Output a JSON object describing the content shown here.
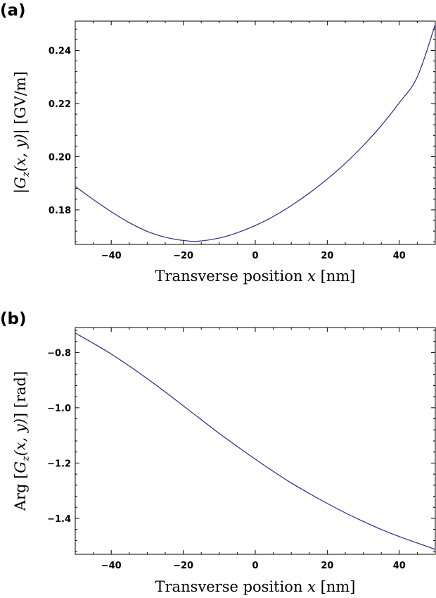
{
  "chart_data": [
    {
      "type": "line",
      "panel_label": "(a)",
      "xlabel_text": "Transverse position ",
      "xlabel_var": "x",
      "xlabel_unit": " [nm]",
      "ylabel_pre": "|",
      "ylabel_sym": "G",
      "ylabel_sub": "z",
      "ylabel_args": "(x, y)",
      "ylabel_post": "| [GV/m]",
      "xlim": [
        -50,
        50
      ],
      "ylim": [
        0.167,
        0.251
      ],
      "xticks": [
        -40,
        -20,
        0,
        20,
        40
      ],
      "yticks": [
        0.18,
        0.2,
        0.22,
        0.24
      ],
      "xtick_labels": [
        "−40",
        "−20",
        "0",
        "20",
        "40"
      ],
      "ytick_labels": [
        "0.18",
        "0.20",
        "0.22",
        "0.24"
      ],
      "color": "#2b2b8c",
      "series": [
        {
          "x": [
            -50,
            -45,
            -40,
            -35,
            -30,
            -25,
            -20,
            -16,
            -10,
            -5,
            0,
            5,
            10,
            15,
            20,
            25,
            30,
            35,
            40,
            45,
            50
          ],
          "values": [
            0.1888,
            0.1839,
            0.1793,
            0.1752,
            0.1719,
            0.1697,
            0.1685,
            0.1682,
            0.1694,
            0.1714,
            0.1741,
            0.1775,
            0.1816,
            0.1863,
            0.1916,
            0.1975,
            0.2042,
            0.2117,
            0.2203,
            0.23,
            0.2498
          ]
        }
      ]
    },
    {
      "type": "line",
      "panel_label": "(b)",
      "xlabel_text": "Transverse position ",
      "xlabel_var": "x",
      "xlabel_unit": " [nm]",
      "ylabel_pre": "Arg [",
      "ylabel_sym": "G",
      "ylabel_sub": "z",
      "ylabel_args": "(x, y)",
      "ylabel_post": "] [rad]",
      "xlim": [
        -50,
        50
      ],
      "ylim": [
        -1.53,
        -0.71
      ],
      "xticks": [
        -40,
        -20,
        0,
        20,
        40
      ],
      "yticks": [
        -1.4,
        -1.2,
        -1.0,
        -0.8
      ],
      "xtick_labels": [
        "−40",
        "−20",
        "0",
        "20",
        "40"
      ],
      "ytick_labels": [
        "−1.4",
        "−1.2",
        "−1.0",
        "−0.8"
      ],
      "color": "#2b2b8c",
      "series": [
        {
          "x": [
            -50,
            -45,
            -40,
            -35,
            -30,
            -25,
            -20,
            -15,
            -10,
            -5,
            0,
            5,
            10,
            15,
            20,
            25,
            30,
            35,
            40,
            45,
            50
          ],
          "values": [
            -0.73,
            -0.767,
            -0.806,
            -0.849,
            -0.895,
            -0.943,
            -0.993,
            -1.043,
            -1.093,
            -1.14,
            -1.186,
            -1.23,
            -1.272,
            -1.31,
            -1.346,
            -1.38,
            -1.411,
            -1.44,
            -1.466,
            -1.489,
            -1.512
          ]
        }
      ]
    }
  ]
}
